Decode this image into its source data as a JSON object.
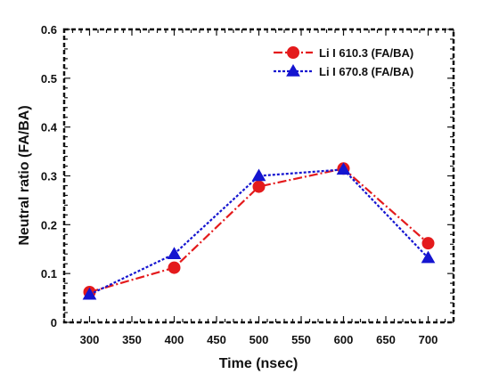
{
  "chart_data": {
    "type": "line",
    "xlabel": "Time (nsec)",
    "ylabel": "Neutral ratio (FA/BA)",
    "xlim": [
      270,
      730
    ],
    "ylim": [
      0,
      0.6
    ],
    "x_ticks": [
      300,
      350,
      400,
      450,
      500,
      550,
      600,
      650,
      700
    ],
    "y_ticks": [
      0,
      0.1,
      0.2,
      0.3,
      0.4,
      0.5,
      0.6
    ],
    "x_tick_labels": [
      "300",
      "350",
      "400",
      "450",
      "500",
      "550",
      "600",
      "650",
      "700"
    ],
    "y_tick_labels": [
      "0",
      "0.1",
      "0.2",
      "0.3",
      "0.4",
      "0.5",
      "0.6"
    ],
    "x": [
      300,
      400,
      500,
      600,
      700
    ],
    "legend_position": "top-right",
    "grid": false,
    "series": [
      {
        "name": "Li I 610.3 (FA/BA)",
        "values": [
          0.062,
          0.112,
          0.278,
          0.315,
          0.162
        ],
        "color": "#e41a1c",
        "marker": "circle",
        "line_style": "dash-dot"
      },
      {
        "name": "Li I 670.8 (FA/BA)",
        "values": [
          0.057,
          0.14,
          0.3,
          0.313,
          0.132
        ],
        "color": "#1515d0",
        "marker": "triangle",
        "line_style": "dotted"
      }
    ]
  }
}
